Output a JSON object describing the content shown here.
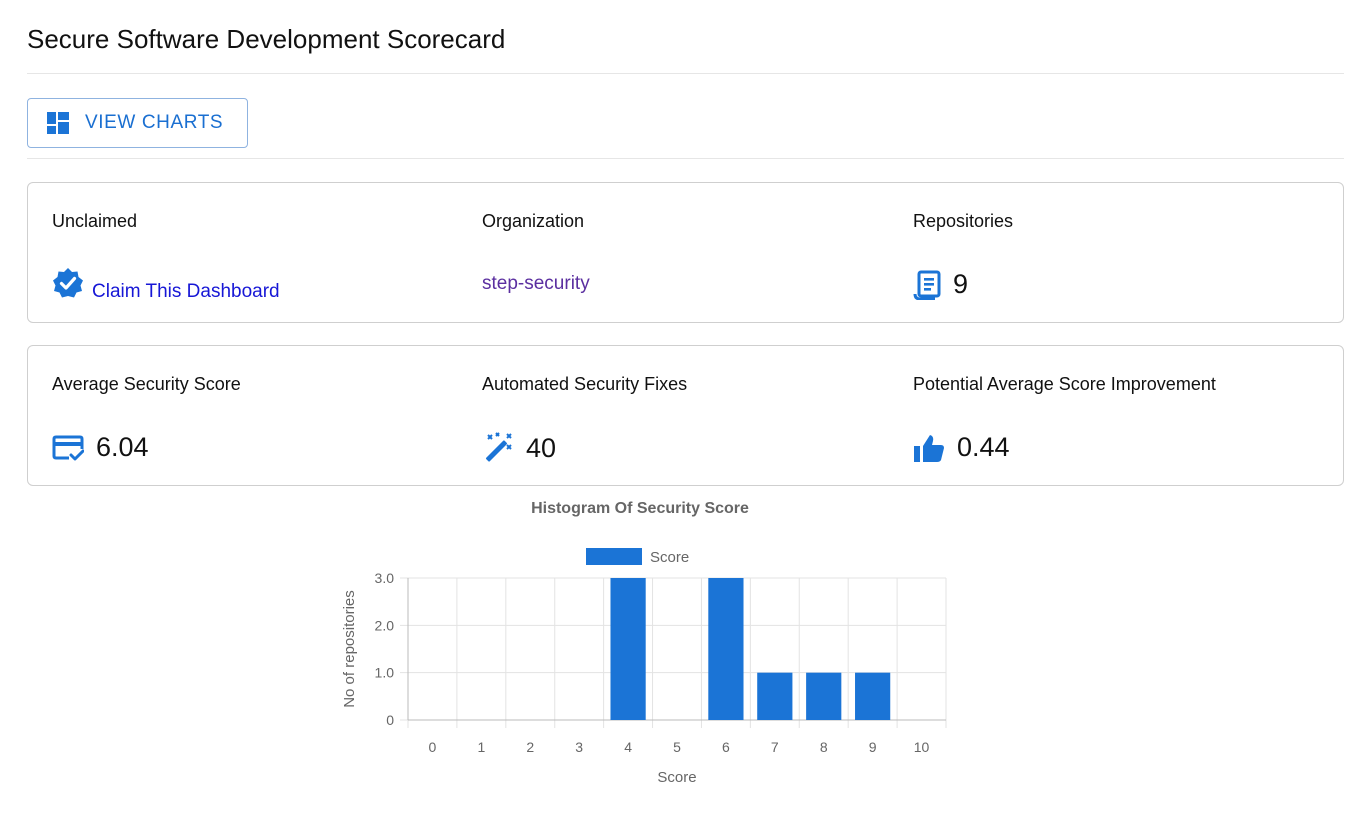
{
  "page": {
    "title": "Secure Software Development Scorecard"
  },
  "toolbar": {
    "view_charts_label": "VIEW CHARTS"
  },
  "summary": {
    "unclaimed_label": "Unclaimed",
    "claim_link": "Claim This Dashboard",
    "organization_label": "Organization",
    "organization_value": "step-security",
    "repositories_label": "Repositories",
    "repositories_value": "9"
  },
  "metrics": {
    "avg_score_label": "Average Security Score",
    "avg_score_value": "6.04",
    "fixes_label": "Automated Security Fixes",
    "fixes_value": "40",
    "improvement_label": "Potential Average Score Improvement",
    "improvement_value": "0.44"
  },
  "colors": {
    "accent": "#1b74d6",
    "link": "#1717d6",
    "org_link": "#5b2fa0"
  },
  "icons": {
    "view_charts": "dashboard-icon",
    "claim": "verified-badge-icon",
    "repositories": "repository-icon",
    "avg_score": "credit-score-icon",
    "fixes": "magic-wand-icon",
    "improvement": "thumbs-up-icon"
  },
  "chart_data": {
    "type": "bar",
    "title": "Histogram Of Security Score",
    "xlabel": "Score",
    "ylabel": "No of repositories",
    "categories": [
      "0",
      "1",
      "2",
      "3",
      "4",
      "5",
      "6",
      "7",
      "8",
      "9",
      "10"
    ],
    "series": [
      {
        "name": "Score",
        "values": [
          0,
          0,
          0,
          0,
          3,
          0,
          3,
          1,
          1,
          1,
          0
        ]
      }
    ],
    "ylim": [
      0,
      3
    ],
    "yticks": [
      "0",
      "1.0",
      "2.0",
      "3.0"
    ],
    "legend": "top",
    "grid": true,
    "color": "#1b74d6"
  }
}
